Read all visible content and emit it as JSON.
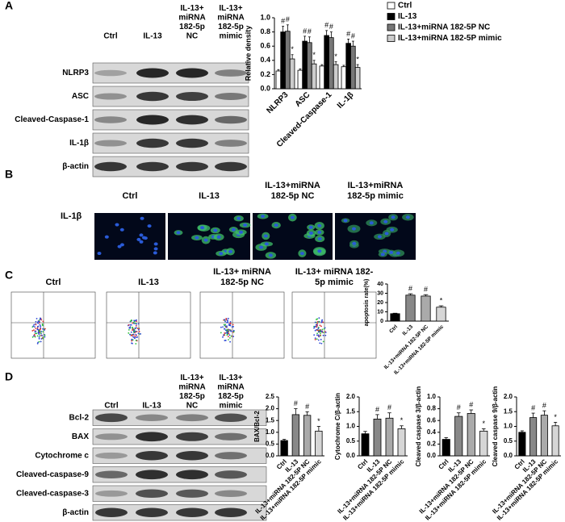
{
  "panel_labels": [
    "A",
    "B",
    "C",
    "D"
  ],
  "blot_a": {
    "columns": [
      [
        "Ctrl"
      ],
      [
        "IL-13"
      ],
      [
        "IL-13+",
        "miRNA",
        "182-5p",
        "NC"
      ],
      [
        "IL-13+",
        "miRNA",
        "182-5p",
        "mimic"
      ]
    ],
    "rows": [
      "NLRP3",
      "ASC",
      "Cleaved-Caspase-1",
      "IL-1β",
      "β-actin"
    ]
  },
  "images_b": {
    "columns": [
      [
        "Ctrl"
      ],
      [
        "IL-13"
      ],
      [
        "IL-13+miRNA",
        "182-5p NC"
      ],
      [
        "IL-13+miRNA",
        "182-5p mimic"
      ]
    ],
    "row_label": "IL-1β"
  },
  "flow_c": {
    "columns": [
      [
        "Ctrl"
      ],
      [
        "IL-13"
      ],
      [
        "IL-13+ miRNA",
        "182-5p NC"
      ],
      [
        "IL-13+ miRNA 182-",
        "5p mimic"
      ]
    ]
  },
  "blot_d": {
    "columns": [
      [
        "Ctrl"
      ],
      [
        "IL-13"
      ],
      [
        "IL-13+",
        "miRNA",
        "182-5p",
        "NC"
      ],
      [
        "IL-13+",
        "miRNA",
        "182-5p",
        "mimic"
      ]
    ],
    "rows": [
      "Bcl-2",
      "BAX",
      "Cytochrome c",
      "Cleaved-caspase-9",
      "Cleaved-caspase-3",
      "β-actin"
    ]
  },
  "chart_data": [
    {
      "type": "bar",
      "y_label": "Relative density",
      "categories": [
        "NLRP3",
        "ASC",
        "Cleaved-Caspase-1",
        "IL-1β"
      ],
      "series": [
        {
          "name": "Ctrl",
          "color": "#ffffff",
          "values": [
            0.25,
            0.26,
            0.32,
            0.31
          ],
          "errors": [
            0.02,
            0.02,
            0.02,
            0.02
          ]
        },
        {
          "name": "IL-13",
          "color": "#000000",
          "values": [
            0.8,
            0.67,
            0.75,
            0.64
          ],
          "errors": [
            0.08,
            0.07,
            0.07,
            0.06
          ],
          "annotations": [
            "#",
            "#",
            "#",
            "#"
          ]
        },
        {
          "name": "IL-13+miRNA 182-5P NC",
          "color": "#777777",
          "values": [
            0.81,
            0.65,
            0.72,
            0.6
          ],
          "errors": [
            0.09,
            0.08,
            0.08,
            0.07
          ],
          "annotations": [
            "#",
            "#",
            "#",
            "#"
          ]
        },
        {
          "name": "IL-13+miRNA 182-5P mimic",
          "color": "#cccccc",
          "values": [
            0.42,
            0.35,
            0.34,
            0.3
          ],
          "errors": [
            0.06,
            0.05,
            0.04,
            0.04
          ],
          "annotations": [
            "*",
            "*",
            "*",
            "*"
          ]
        }
      ],
      "ylim": [
        0,
        1.0
      ],
      "yticks": [
        {
          "value": 0,
          "label": "0.0"
        },
        {
          "value": 0.2,
          "label": "0.2"
        },
        {
          "value": 0.4,
          "label": "0.4"
        },
        {
          "value": 0.6,
          "label": "0.6"
        },
        {
          "value": 0.8,
          "label": "0.8"
        },
        {
          "value": 1.0,
          "label": "1.0"
        }
      ],
      "legend": "right"
    },
    {
      "type": "bar",
      "y_label": "apoptosis rate(%)",
      "categories": [
        "Ctrl",
        "IL-13",
        "IL-13+miRNA 182-5P NC",
        "IL-13+miRNA 182-5P mimic"
      ],
      "values": [
        8,
        28,
        27,
        15
      ],
      "errors": [
        0.5,
        1.5,
        1.5,
        1.5
      ],
      "annotations": [
        null,
        "#",
        "#",
        "*"
      ],
      "colors": [
        "#000000",
        "#888888",
        "#aaaaaa",
        "#d6d6d6"
      ],
      "ylim": [
        0,
        40
      ],
      "yticks": [
        0,
        10,
        20,
        30,
        40
      ]
    },
    {
      "type": "bar",
      "y_label": "BAX/Bcl-2",
      "categories": [
        "Ctrl",
        "IL-13",
        "IL-13+miRNA 182-5P NC",
        "IL-13+miRNA 182-5P mimic"
      ],
      "values": [
        0.65,
        1.75,
        1.72,
        1.05
      ],
      "errors": [
        0.05,
        0.25,
        0.15,
        0.2
      ],
      "annotations": [
        null,
        "#",
        "#",
        "*"
      ],
      "colors": [
        "#000000",
        "#888888",
        "#aaaaaa",
        "#d6d6d6"
      ],
      "ylim": [
        0,
        2.5
      ],
      "yticks": [
        {
          "value": 0,
          "label": "0.0"
        },
        {
          "value": 0.5,
          "label": "0.5"
        },
        {
          "value": 1.0,
          "label": "1.0"
        },
        {
          "value": 1.5,
          "label": "1.5"
        },
        {
          "value": 2.0,
          "label": "2.0"
        },
        {
          "value": 2.5,
          "label": "2.5"
        }
      ]
    },
    {
      "type": "bar",
      "y_label": "Cytochrome C/β-actin",
      "categories": [
        "Ctrl",
        "IL-13",
        "IL-13+miRNA 182-5P NC",
        "IL-13+miRNA 182-5P mimic"
      ],
      "values": [
        0.75,
        1.25,
        1.28,
        0.92
      ],
      "errors": [
        0.08,
        0.15,
        0.18,
        0.1
      ],
      "annotations": [
        null,
        "#",
        "#",
        "*"
      ],
      "colors": [
        "#000000",
        "#888888",
        "#aaaaaa",
        "#d6d6d6"
      ],
      "ylim": [
        0,
        2.0
      ],
      "yticks": [
        {
          "value": 0,
          "label": "0.0"
        },
        {
          "value": 0.5,
          "label": "0.5"
        },
        {
          "value": 1.0,
          "label": "1.0"
        },
        {
          "value": 1.5,
          "label": "1.5"
        },
        {
          "value": 2.0,
          "label": "2.0"
        }
      ]
    },
    {
      "type": "bar",
      "y_label": "Cleaved caspase 3/β-actin",
      "categories": [
        "Ctrl",
        "IL-13",
        "IL-13+miRNA 182-5P NC",
        "IL-13+miRNA 182-5P mimic"
      ],
      "values": [
        0.28,
        0.67,
        0.72,
        0.42
      ],
      "errors": [
        0.03,
        0.06,
        0.06,
        0.04
      ],
      "annotations": [
        null,
        "#",
        "#",
        "*"
      ],
      "colors": [
        "#000000",
        "#888888",
        "#aaaaaa",
        "#d6d6d6"
      ],
      "ylim": [
        0,
        1.0
      ],
      "yticks": [
        {
          "value": 0,
          "label": "0.0"
        },
        {
          "value": 0.2,
          "label": "0.2"
        },
        {
          "value": 0.4,
          "label": "0.4"
        },
        {
          "value": 0.6,
          "label": "0.6"
        },
        {
          "value": 0.8,
          "label": "0.8"
        },
        {
          "value": 1.0,
          "label": "1.0"
        }
      ]
    },
    {
      "type": "bar",
      "y_label": "Cleaved caspase 9/β-actin",
      "categories": [
        "Ctrl",
        "IL-13",
        "IL-13+miRNA 182-5P NC",
        "IL-13+miRNA 182-5P mimic"
      ],
      "values": [
        0.8,
        1.3,
        1.38,
        1.02
      ],
      "errors": [
        0.05,
        0.15,
        0.15,
        0.12
      ],
      "annotations": [
        null,
        "#",
        "#",
        "*"
      ],
      "colors": [
        "#000000",
        "#888888",
        "#aaaaaa",
        "#d6d6d6"
      ],
      "ylim": [
        0,
        2.0
      ],
      "yticks": [
        {
          "value": 0,
          "label": "0.0"
        },
        {
          "value": 0.5,
          "label": "0.5"
        },
        {
          "value": 1.0,
          "label": "1.0"
        },
        {
          "value": 1.5,
          "label": "1.5"
        },
        {
          "value": 2.0,
          "label": "2.0"
        }
      ]
    }
  ]
}
